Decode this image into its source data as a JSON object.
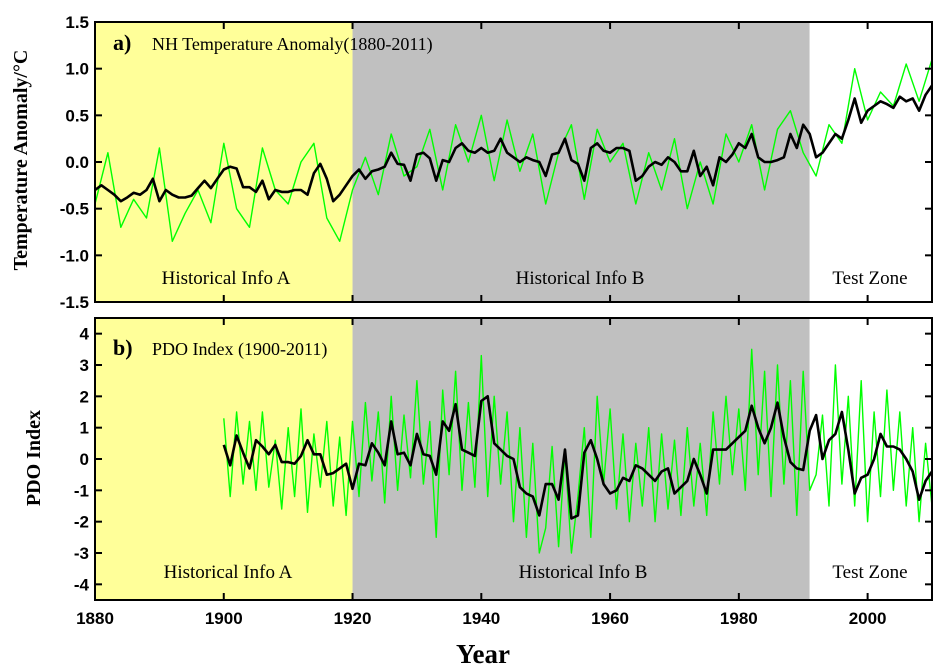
{
  "chart_data": [
    {
      "panel": "a)",
      "type": "line",
      "title": "NH Temperature Anomaly(1880-2011)",
      "xlabel": "Year",
      "ylabel": "Temperature Anomaly/°C",
      "xlim": [
        1880,
        2010
      ],
      "ylim": [
        -1.5,
        1.5
      ],
      "xticks": [
        "1880",
        "1900",
        "1920",
        "1940",
        "1960",
        "1980",
        "2000"
      ],
      "yticks": [
        "1.5",
        "1.0",
        "0.5",
        "0.0",
        "-0.5",
        "-1.0",
        "-1.5"
      ],
      "zones": [
        {
          "label": "Historical Info A",
          "from": 1880,
          "to": 1920,
          "color": "#ffff99"
        },
        {
          "label": "Historical Info B",
          "from": 1920,
          "to": 1991,
          "color": "#c0c0c0"
        },
        {
          "label": "Test Zone",
          "from": 1991,
          "to": 2010,
          "color": "#ffffff"
        }
      ],
      "series": [
        {
          "style": "monthly",
          "color": "#00ff00",
          "x": [
            1880,
            1882,
            1884,
            1886,
            1888,
            1890,
            1892,
            1894,
            1896,
            1898,
            1900,
            1902,
            1904,
            1906,
            1908,
            1910,
            1912,
            1914,
            1916,
            1918,
            1920,
            1922,
            1924,
            1926,
            1928,
            1930,
            1932,
            1934,
            1936,
            1938,
            1940,
            1942,
            1944,
            1946,
            1948,
            1950,
            1952,
            1954,
            1956,
            1958,
            1960,
            1962,
            1964,
            1966,
            1968,
            1970,
            1972,
            1974,
            1976,
            1978,
            1980,
            1982,
            1984,
            1986,
            1988,
            1990,
            1992,
            1994,
            1996,
            1998,
            2000,
            2002,
            2004,
            2006,
            2008,
            2010
          ],
          "y": [
            -0.45,
            0.1,
            -0.7,
            -0.4,
            -0.6,
            0.15,
            -0.85,
            -0.55,
            -0.3,
            -0.65,
            0.2,
            -0.5,
            -0.7,
            0.15,
            -0.3,
            -0.45,
            0.0,
            0.2,
            -0.6,
            -0.85,
            -0.3,
            0.05,
            -0.35,
            0.3,
            -0.15,
            -0.05,
            0.35,
            -0.3,
            0.4,
            0.0,
            0.5,
            -0.2,
            0.45,
            -0.1,
            0.3,
            -0.45,
            0.1,
            0.4,
            -0.4,
            0.35,
            0.0,
            0.2,
            -0.45,
            0.1,
            -0.3,
            0.25,
            -0.5,
            0.0,
            -0.45,
            0.3,
            0.0,
            0.4,
            -0.3,
            0.35,
            0.55,
            0.1,
            -0.15,
            0.4,
            0.2,
            1.0,
            0.45,
            0.75,
            0.6,
            1.05,
            0.65,
            1.1
          ]
        },
        {
          "style": "annual",
          "color": "#000000",
          "x": [
            1880,
            1881,
            1882,
            1883,
            1884,
            1885,
            1886,
            1887,
            1888,
            1889,
            1890,
            1891,
            1892,
            1893,
            1894,
            1895,
            1896,
            1897,
            1898,
            1899,
            1900,
            1901,
            1902,
            1903,
            1904,
            1905,
            1906,
            1907,
            1908,
            1909,
            1910,
            1911,
            1912,
            1913,
            1914,
            1915,
            1916,
            1917,
            1918,
            1919,
            1920,
            1921,
            1922,
            1923,
            1924,
            1925,
            1926,
            1927,
            1928,
            1929,
            1930,
            1931,
            1932,
            1933,
            1934,
            1935,
            1936,
            1937,
            1938,
            1939,
            1940,
            1941,
            1942,
            1943,
            1944,
            1945,
            1946,
            1947,
            1948,
            1949,
            1950,
            1951,
            1952,
            1953,
            1954,
            1955,
            1956,
            1957,
            1958,
            1959,
            1960,
            1961,
            1962,
            1963,
            1964,
            1965,
            1966,
            1967,
            1968,
            1969,
            1970,
            1971,
            1972,
            1973,
            1974,
            1975,
            1976,
            1977,
            1978,
            1979,
            1980,
            1981,
            1982,
            1983,
            1984,
            1985,
            1986,
            1987,
            1988,
            1989,
            1990,
            1991,
            1992,
            1993,
            1994,
            1995,
            1996,
            1997,
            1998,
            1999,
            2000,
            2001,
            2002,
            2003,
            2004,
            2005,
            2006,
            2007,
            2008,
            2009,
            2010
          ],
          "y": [
            -0.3,
            -0.25,
            -0.3,
            -0.35,
            -0.42,
            -0.38,
            -0.33,
            -0.35,
            -0.3,
            -0.18,
            -0.42,
            -0.3,
            -0.35,
            -0.38,
            -0.38,
            -0.36,
            -0.28,
            -0.2,
            -0.28,
            -0.18,
            -0.08,
            -0.05,
            -0.07,
            -0.27,
            -0.27,
            -0.32,
            -0.2,
            -0.4,
            -0.3,
            -0.32,
            -0.32,
            -0.3,
            -0.3,
            -0.35,
            -0.12,
            -0.02,
            -0.18,
            -0.42,
            -0.35,
            -0.25,
            -0.15,
            -0.08,
            -0.18,
            -0.1,
            -0.08,
            -0.05,
            0.1,
            -0.02,
            -0.03,
            -0.2,
            0.08,
            0.1,
            0.04,
            -0.2,
            0.02,
            0.0,
            0.15,
            0.2,
            0.12,
            0.1,
            0.15,
            0.1,
            0.12,
            0.25,
            0.1,
            0.05,
            0.0,
            0.05,
            0.02,
            0.0,
            -0.15,
            0.08,
            0.1,
            0.25,
            0.02,
            -0.02,
            -0.2,
            0.15,
            0.2,
            0.12,
            0.1,
            0.15,
            0.15,
            0.12,
            -0.2,
            -0.15,
            -0.05,
            0.0,
            -0.03,
            0.05,
            0.0,
            -0.1,
            -0.1,
            0.12,
            -0.15,
            -0.05,
            -0.25,
            0.05,
            0.0,
            0.08,
            0.2,
            0.15,
            0.3,
            0.05,
            0.0,
            0.0,
            0.02,
            0.05,
            0.3,
            0.15,
            0.4,
            0.3,
            0.05,
            0.1,
            0.2,
            0.3,
            0.25,
            0.45,
            0.68,
            0.42,
            0.55,
            0.6,
            0.65,
            0.62,
            0.58,
            0.7,
            0.65,
            0.68,
            0.55,
            0.72,
            0.82
          ]
        }
      ],
      "annotations": [
        "Historical Info A",
        "Historical Info B",
        "Test Zone"
      ]
    },
    {
      "panel": "b)",
      "type": "line",
      "title": "PDO Index (1900-2011)",
      "xlabel": "Year",
      "ylabel": "PDO Index",
      "xlim": [
        1880,
        2010
      ],
      "ylim": [
        -4.5,
        4.5
      ],
      "xticks": [
        "1880",
        "1900",
        "1920",
        "1940",
        "1960",
        "1980",
        "2000"
      ],
      "yticks": [
        "4",
        "3",
        "2",
        "1",
        "0",
        "-1",
        "-2",
        "-3",
        "-4"
      ],
      "zones": [
        {
          "label": "Historical Info A",
          "from": 1880,
          "to": 1920,
          "color": "#ffff99"
        },
        {
          "label": "Historical Info B",
          "from": 1920,
          "to": 1991,
          "color": "#c0c0c0"
        },
        {
          "label": "Test Zone",
          "from": 1991,
          "to": 2010,
          "color": "#ffffff"
        }
      ],
      "series": [
        {
          "style": "monthly",
          "color": "#00ff00",
          "x": [
            1900,
            1901,
            1902,
            1903,
            1904,
            1905,
            1906,
            1907,
            1908,
            1909,
            1910,
            1911,
            1912,
            1913,
            1914,
            1915,
            1916,
            1917,
            1918,
            1919,
            1920,
            1921,
            1922,
            1923,
            1924,
            1925,
            1926,
            1927,
            1928,
            1929,
            1930,
            1931,
            1932,
            1933,
            1934,
            1935,
            1936,
            1937,
            1938,
            1939,
            1940,
            1941,
            1942,
            1943,
            1944,
            1945,
            1946,
            1947,
            1948,
            1949,
            1950,
            1951,
            1952,
            1953,
            1954,
            1955,
            1956,
            1957,
            1958,
            1959,
            1960,
            1961,
            1962,
            1963,
            1964,
            1965,
            1966,
            1967,
            1968,
            1969,
            1970,
            1971,
            1972,
            1973,
            1974,
            1975,
            1976,
            1977,
            1978,
            1979,
            1980,
            1981,
            1982,
            1983,
            1984,
            1985,
            1986,
            1987,
            1988,
            1989,
            1990,
            1991,
            1992,
            1993,
            1994,
            1995,
            1996,
            1997,
            1998,
            1999,
            2000,
            2001,
            2002,
            2003,
            2004,
            2005,
            2006,
            2007,
            2008,
            2009,
            2010
          ],
          "y": [
            1.3,
            -1.2,
            1.5,
            -0.8,
            1.2,
            -1.0,
            1.5,
            -0.9,
            0.6,
            -1.6,
            1.0,
            -1.2,
            1.6,
            -1.7,
            0.8,
            -0.9,
            1.2,
            -1.5,
            0.7,
            -1.8,
            1.2,
            -1.2,
            1.8,
            -0.7,
            1.5,
            -1.4,
            2.0,
            -1.0,
            1.4,
            -0.6,
            2.5,
            -0.8,
            1.2,
            -2.5,
            2.2,
            -0.5,
            2.8,
            -1.0,
            1.8,
            -0.9,
            3.3,
            -1.2,
            2.0,
            -0.8,
            1.5,
            -2.0,
            1.0,
            -2.5,
            0.5,
            -3.0,
            -2.2,
            0.4,
            -2.8,
            0.2,
            -3.0,
            -1.2,
            1.0,
            -2.5,
            2.0,
            -0.8,
            1.6,
            -1.6,
            0.8,
            -2.0,
            0.5,
            -1.5,
            1.0,
            -2.0,
            0.8,
            -1.6,
            0.6,
            -1.8,
            1.0,
            -1.5,
            0.5,
            -1.8,
            1.5,
            -0.8,
            2.0,
            -0.5,
            1.6,
            -1.0,
            3.5,
            -0.5,
            2.8,
            -1.2,
            3.0,
            -0.8,
            2.5,
            -1.8,
            2.8,
            -1.0,
            -0.5,
            1.4,
            -1.5,
            3.0,
            -0.8,
            2.0,
            -1.5,
            2.5,
            -2.0,
            1.5,
            -1.2,
            2.2,
            -1.0,
            1.5,
            -1.5,
            1.0,
            -2.0,
            0.5,
            -1.5
          ]
        },
        {
          "style": "annual",
          "color": "#000000",
          "x": [
            1900,
            1901,
            1902,
            1903,
            1904,
            1905,
            1906,
            1907,
            1908,
            1909,
            1910,
            1911,
            1912,
            1913,
            1914,
            1915,
            1916,
            1917,
            1918,
            1919,
            1920,
            1921,
            1922,
            1923,
            1924,
            1925,
            1926,
            1927,
            1928,
            1929,
            1930,
            1931,
            1932,
            1933,
            1934,
            1935,
            1936,
            1937,
            1938,
            1939,
            1940,
            1941,
            1942,
            1943,
            1944,
            1945,
            1946,
            1947,
            1948,
            1949,
            1950,
            1951,
            1952,
            1953,
            1954,
            1955,
            1956,
            1957,
            1958,
            1959,
            1960,
            1961,
            1962,
            1963,
            1964,
            1965,
            1966,
            1967,
            1968,
            1969,
            1970,
            1971,
            1972,
            1973,
            1974,
            1975,
            1976,
            1977,
            1978,
            1979,
            1980,
            1981,
            1982,
            1983,
            1984,
            1985,
            1986,
            1987,
            1988,
            1989,
            1990,
            1991,
            1992,
            1993,
            1994,
            1995,
            1996,
            1997,
            1998,
            1999,
            2000,
            2001,
            2002,
            2003,
            2004,
            2005,
            2006,
            2007,
            2008,
            2009,
            2010
          ],
          "y": [
            0.45,
            -0.2,
            0.75,
            0.2,
            -0.3,
            0.6,
            0.4,
            0.15,
            0.45,
            -0.1,
            -0.1,
            -0.15,
            0.1,
            0.6,
            0.15,
            0.15,
            -0.5,
            -0.45,
            -0.3,
            -0.15,
            -0.95,
            -0.15,
            -0.2,
            0.5,
            0.2,
            -0.2,
            1.2,
            0.15,
            0.2,
            -0.2,
            0.8,
            0.15,
            0.1,
            -0.5,
            1.2,
            0.9,
            1.75,
            0.3,
            0.2,
            0.1,
            1.85,
            2.0,
            0.5,
            0.3,
            0.1,
            0.0,
            -0.9,
            -1.1,
            -1.2,
            -1.8,
            -0.8,
            -0.8,
            -1.3,
            0.3,
            -1.9,
            -1.8,
            0.2,
            0.6,
            0.0,
            -0.8,
            -1.1,
            -1.0,
            -0.6,
            -0.7,
            -0.2,
            -0.3,
            -0.5,
            -0.7,
            -0.4,
            -0.3,
            -1.1,
            -0.9,
            -0.7,
            0.0,
            -0.5,
            -1.1,
            0.3,
            0.3,
            0.3,
            0.5,
            0.7,
            0.9,
            1.7,
            1.0,
            0.5,
            1.0,
            1.8,
            0.7,
            -0.1,
            -0.3,
            -0.35,
            0.9,
            1.4,
            0.0,
            0.6,
            0.8,
            1.5,
            0.3,
            -1.1,
            -0.6,
            -0.5,
            0.0,
            0.8,
            0.4,
            0.4,
            0.3,
            0.0,
            -0.4,
            -1.3,
            -0.7,
            -0.4
          ]
        }
      ],
      "annotations": [
        "Historical Info A",
        "Historical Info B",
        "Test Zone"
      ]
    }
  ]
}
